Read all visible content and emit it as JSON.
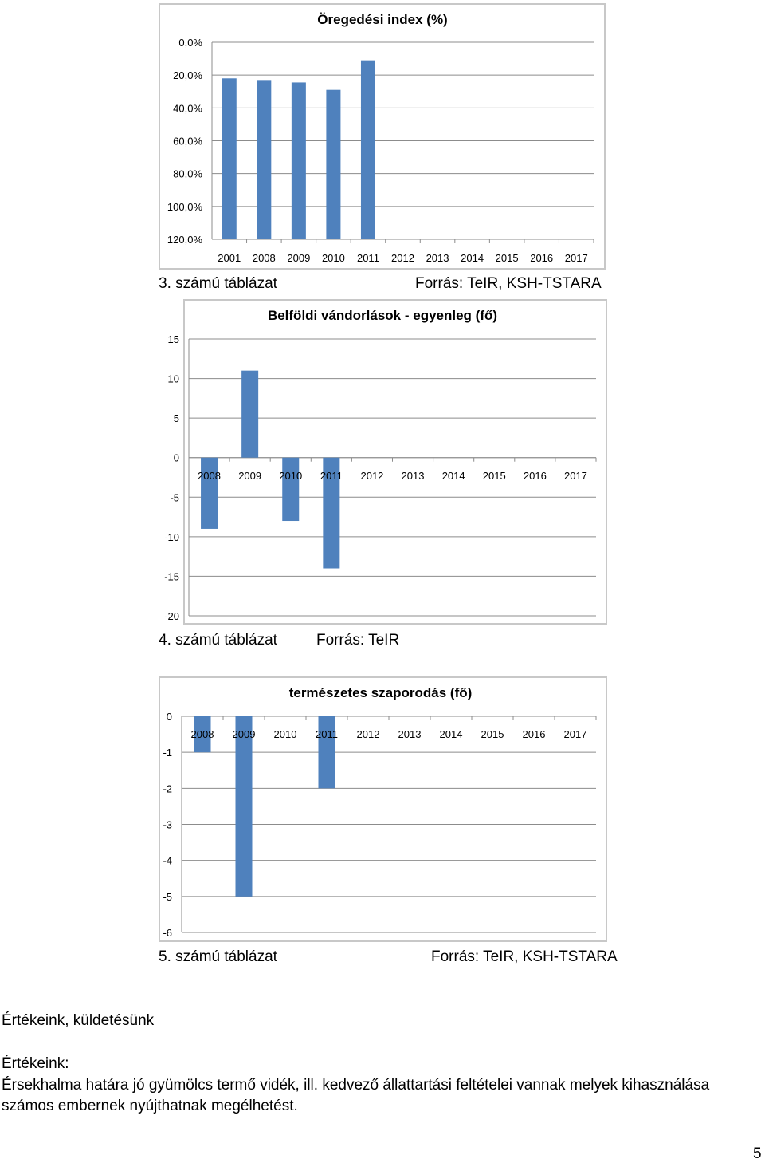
{
  "charts": [
    {
      "title": "Öregedési index (%)",
      "caption_left": "3. számú táblázat",
      "caption_right": "Forrás: TeIR, KSH-TSTARA",
      "chart_data": {
        "type": "bar",
        "title": "Öregedési index (%)",
        "categories": [
          "2001",
          "2008",
          "2009",
          "2010",
          "2011",
          "2012",
          "2013",
          "2014",
          "2015",
          "2016",
          "2017"
        ],
        "values": [
          98.0,
          97.0,
          95.5,
          91.0,
          109.0,
          null,
          null,
          null,
          null,
          null,
          null
        ],
        "yticks": [
          "0,0%",
          "20,0%",
          "40,0%",
          "60,0%",
          "80,0%",
          "100,0%",
          "120,0%"
        ],
        "ylim": [
          0,
          120
        ],
        "grid": true,
        "legend": "none",
        "bar_color": "#4f81bd"
      }
    },
    {
      "title": "Belföldi vándorlások - egyenleg (fő)",
      "caption_left": "4. számú táblázat",
      "caption_right": "Forrás: TeIR",
      "chart_data": {
        "type": "bar",
        "title": "Belföldi vándorlások - egyenleg (fő)",
        "categories": [
          "2008",
          "2009",
          "2010",
          "2011",
          "2012",
          "2013",
          "2014",
          "2015",
          "2016",
          "2017"
        ],
        "values": [
          -9,
          11,
          -8,
          -14,
          null,
          null,
          null,
          null,
          null,
          null
        ],
        "yticks": [
          "15",
          "10",
          "5",
          "0",
          "-5",
          "-10",
          "-15",
          "-20"
        ],
        "ylim": [
          -20,
          15
        ],
        "grid": true,
        "legend": "none",
        "bar_color": "#4f81bd"
      }
    },
    {
      "title": "természetes szaporodás (fő)",
      "caption_left": "5. számú táblázat",
      "caption_right": "Forrás: TeIR, KSH-TSTARA",
      "chart_data": {
        "type": "bar",
        "title": "természetes szaporodás (fő)",
        "categories": [
          "2008",
          "2009",
          "2010",
          "2011",
          "2012",
          "2013",
          "2014",
          "2015",
          "2016",
          "2017"
        ],
        "values": [
          -1,
          -5,
          null,
          -2,
          null,
          null,
          null,
          null,
          null,
          null
        ],
        "yticks": [
          "0",
          "-1",
          "-2",
          "-3",
          "-4",
          "-5",
          "-6"
        ],
        "ylim": [
          -6,
          0
        ],
        "grid": true,
        "legend": "none",
        "bar_color": "#4f81bd"
      }
    }
  ],
  "document": {
    "heading": "Értékeink, küldetésünk",
    "subheading": "Értékeink:",
    "line1": "Érsekhalma határa jó gyümölcs termő vidék, ill. kedvező állattartási feltételei vannak melyek kihasználása",
    "line2": "számos embernek nyújthatnak megélhetést.",
    "page_number": "5"
  }
}
